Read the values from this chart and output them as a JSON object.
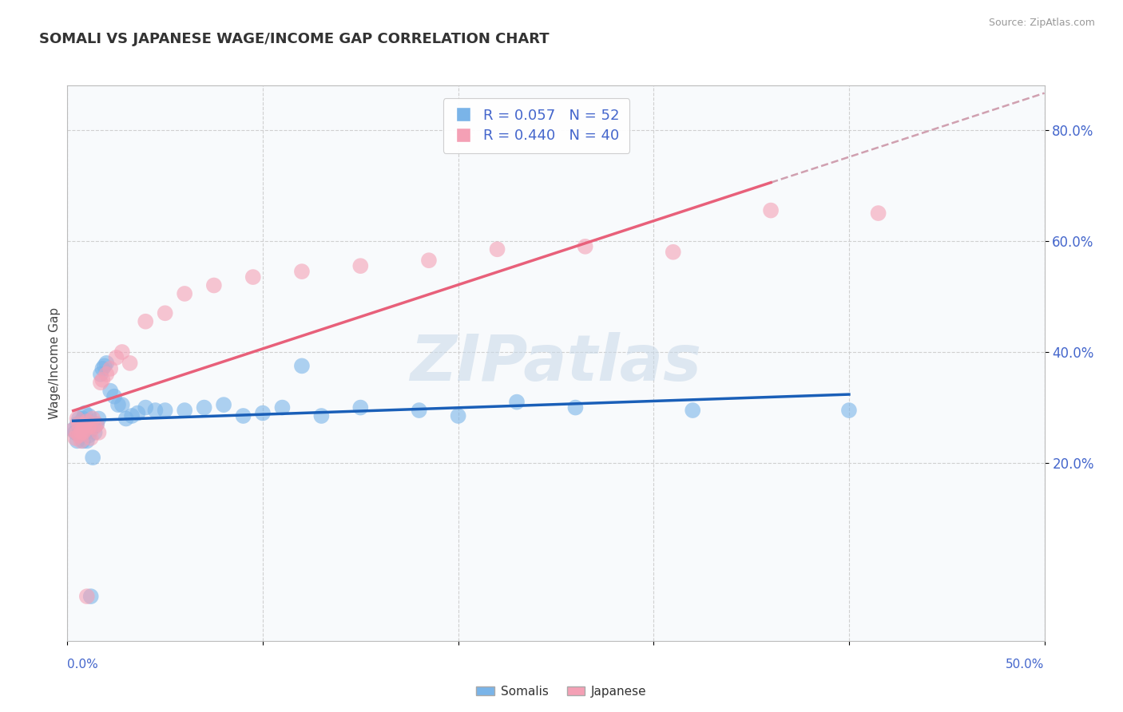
{
  "title": "SOMALI VS JAPANESE WAGE/INCOME GAP CORRELATION CHART",
  "source_text": "Source: ZipAtlas.com",
  "ylabel": "Wage/Income Gap",
  "xlim": [
    0.0,
    0.5
  ],
  "ylim": [
    -0.12,
    0.88
  ],
  "yticks": [
    0.2,
    0.4,
    0.6,
    0.8
  ],
  "ytick_labels": [
    "20.0%",
    "40.0%",
    "60.0%",
    "80.0%"
  ],
  "somali_color": "#7ab4e8",
  "japanese_color": "#f4a0b5",
  "somali_line_color": "#1a5fb8",
  "japanese_line_color": "#e8607a",
  "dashed_line_color": "#d0a0b0",
  "watermark": "ZIPatlas",
  "watermark_color": "#c8d8e8",
  "somali_x": [
    0.003,
    0.004,
    0.005,
    0.005,
    0.006,
    0.006,
    0.007,
    0.007,
    0.008,
    0.008,
    0.009,
    0.009,
    0.01,
    0.01,
    0.011,
    0.011,
    0.012,
    0.012,
    0.013,
    0.013,
    0.014,
    0.015,
    0.016,
    0.017,
    0.018,
    0.019,
    0.02,
    0.022,
    0.024,
    0.026,
    0.028,
    0.03,
    0.033,
    0.036,
    0.04,
    0.045,
    0.05,
    0.06,
    0.07,
    0.08,
    0.09,
    0.1,
    0.11,
    0.12,
    0.13,
    0.15,
    0.18,
    0.2,
    0.23,
    0.26,
    0.32,
    0.4
  ],
  "somali_y": [
    0.26,
    0.255,
    0.27,
    0.24,
    0.28,
    0.25,
    0.27,
    0.265,
    0.28,
    0.24,
    0.29,
    0.255,
    0.275,
    0.24,
    0.285,
    0.25,
    0.26,
    -0.04,
    0.265,
    0.21,
    0.255,
    0.27,
    0.28,
    0.36,
    0.37,
    0.375,
    0.38,
    0.33,
    0.32,
    0.305,
    0.305,
    0.28,
    0.285,
    0.29,
    0.3,
    0.295,
    0.295,
    0.295,
    0.3,
    0.305,
    0.285,
    0.29,
    0.3,
    0.375,
    0.285,
    0.3,
    0.295,
    0.285,
    0.31,
    0.3,
    0.295,
    0.295
  ],
  "japanese_x": [
    0.003,
    0.004,
    0.005,
    0.005,
    0.006,
    0.006,
    0.007,
    0.007,
    0.008,
    0.008,
    0.009,
    0.009,
    0.01,
    0.01,
    0.011,
    0.012,
    0.013,
    0.014,
    0.015,
    0.016,
    0.017,
    0.018,
    0.02,
    0.022,
    0.025,
    0.028,
    0.032,
    0.04,
    0.05,
    0.06,
    0.075,
    0.095,
    0.12,
    0.15,
    0.185,
    0.22,
    0.265,
    0.31,
    0.36,
    0.415
  ],
  "japanese_y": [
    0.26,
    0.245,
    0.255,
    0.28,
    0.27,
    0.25,
    0.255,
    0.24,
    0.265,
    0.255,
    0.27,
    0.26,
    0.275,
    -0.04,
    0.265,
    0.245,
    0.28,
    0.265,
    0.27,
    0.255,
    0.345,
    0.35,
    0.36,
    0.37,
    0.39,
    0.4,
    0.38,
    0.455,
    0.47,
    0.505,
    0.52,
    0.535,
    0.545,
    0.555,
    0.565,
    0.585,
    0.59,
    0.58,
    0.655,
    0.65
  ],
  "grid_color": "#cccccc",
  "bg_color": "#ffffff",
  "plot_bg_color": "#f8fafc"
}
